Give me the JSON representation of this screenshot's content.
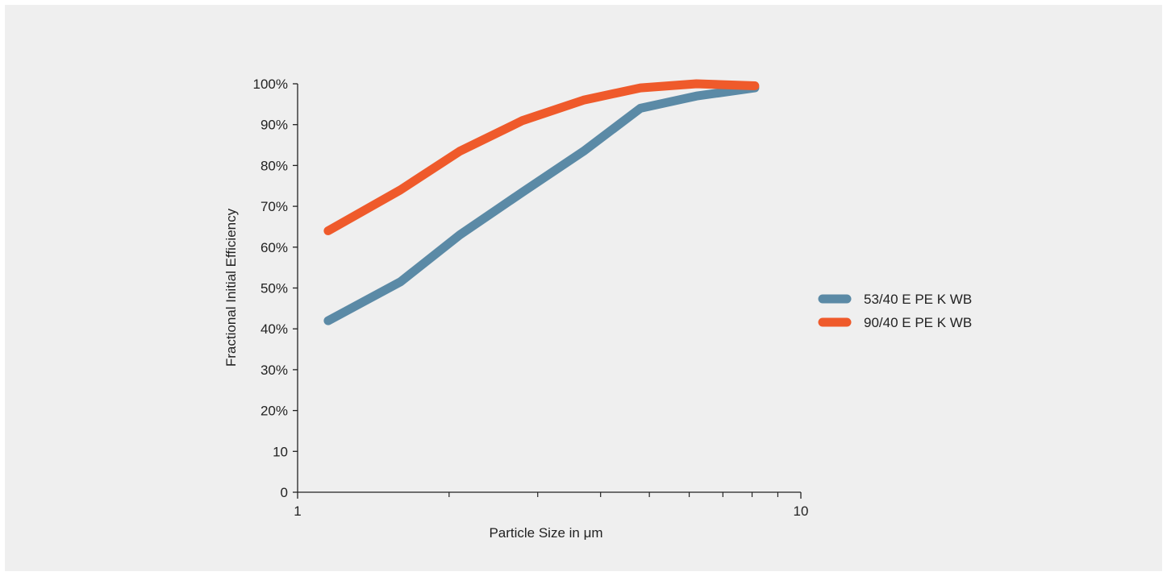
{
  "chart_data": {
    "type": "line",
    "xscale": "log",
    "xlim": [
      1,
      10
    ],
    "ylim": [
      0,
      100
    ],
    "xlabel": "Particle Size in μm",
    "ylabel": "Fractional Initial Efficiency",
    "x_tick_labels": [
      {
        "value": 1,
        "label": "1"
      },
      {
        "value": 10,
        "label": "10"
      }
    ],
    "x_minor_ticks": [
      2,
      3,
      4,
      5,
      6,
      7,
      8,
      9
    ],
    "y_tick_labels": [
      {
        "value": 0,
        "label": "0"
      },
      {
        "value": 10,
        "label": "10"
      },
      {
        "value": 20,
        "label": "20%"
      },
      {
        "value": 30,
        "label": "30%"
      },
      {
        "value": 40,
        "label": "40%"
      },
      {
        "value": 50,
        "label": "50%"
      },
      {
        "value": 60,
        "label": "60%"
      },
      {
        "value": 70,
        "label": "70%"
      },
      {
        "value": 80,
        "label": "80%"
      },
      {
        "value": 90,
        "label": "90%"
      },
      {
        "value": 100,
        "label": "100%"
      }
    ],
    "grid": false,
    "legend": "right",
    "series": [
      {
        "name": "53/40 E PE K WB",
        "color": "#5b8aa6",
        "x": [
          1.15,
          1.6,
          2.1,
          2.8,
          3.7,
          4.8,
          6.2,
          8.1
        ],
        "y": [
          42,
          51.5,
          63,
          73.5,
          83.5,
          94,
          97,
          99
        ]
      },
      {
        "name": "90/40 E PE K WB",
        "color": "#ef5a2b",
        "x": [
          1.15,
          1.6,
          2.1,
          2.8,
          3.7,
          4.8,
          6.2,
          8.1
        ],
        "y": [
          64,
          74,
          83.5,
          91,
          96,
          99,
          100,
          99.5
        ]
      }
    ]
  }
}
